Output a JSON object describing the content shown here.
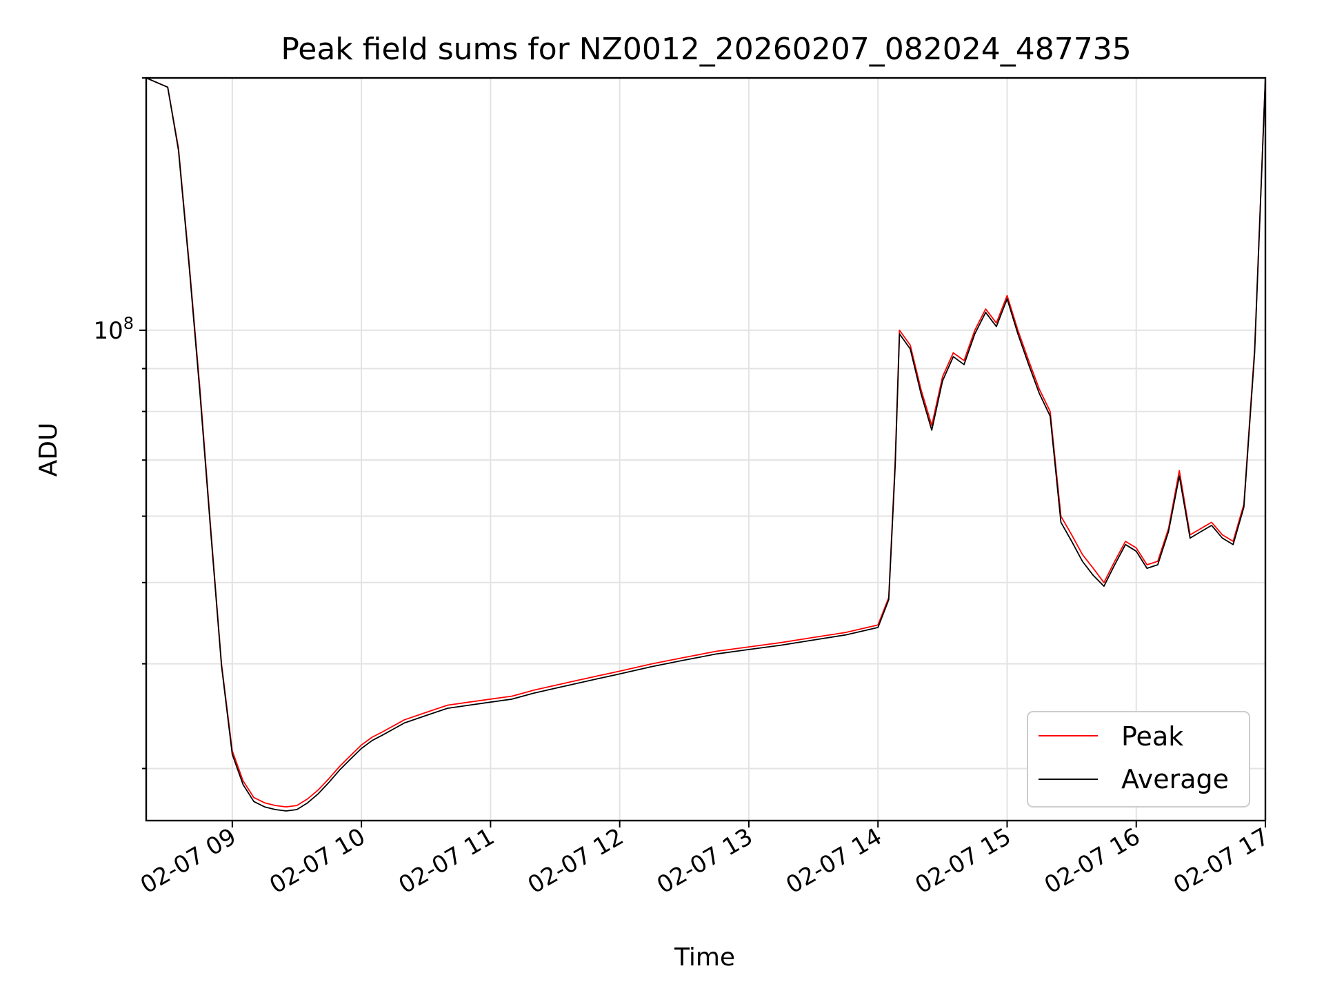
{
  "chart_data": {
    "type": "line",
    "title": "Peak field sums for NZ0012_20260207_082024_487735",
    "xlabel": "Time",
    "ylabel": "ADU",
    "yscale": "log",
    "ylim": [
      26000000,
      200000000
    ],
    "xlim": [
      "2026-02-07 08:20",
      "2026-02-07 17:00"
    ],
    "x_ticks": [
      "02-07 09",
      "02-07 10",
      "02-07 11",
      "02-07 12",
      "02-07 13",
      "02-07 14",
      "02-07 15",
      "02-07 16",
      "02-07 17"
    ],
    "y_ticks": [
      {
        "label": "10",
        "exponent": "8",
        "value": 100000000
      }
    ],
    "grid": true,
    "legend_position": "lower-right",
    "x": [
      "08:20",
      "08:30",
      "08:35",
      "08:40",
      "08:45",
      "08:50",
      "08:55",
      "09:00",
      "09:05",
      "09:10",
      "09:15",
      "09:20",
      "09:25",
      "09:30",
      "09:35",
      "09:40",
      "09:45",
      "09:50",
      "09:55",
      "10:00",
      "10:05",
      "10:10",
      "10:20",
      "10:30",
      "10:40",
      "10:50",
      "11:00",
      "11:10",
      "11:15",
      "11:20",
      "11:30",
      "11:40",
      "11:50",
      "12:00",
      "12:15",
      "12:30",
      "12:45",
      "13:00",
      "13:15",
      "13:30",
      "13:45",
      "14:00",
      "14:05",
      "14:08",
      "14:10",
      "14:15",
      "14:20",
      "14:25",
      "14:30",
      "14:35",
      "14:40",
      "14:45",
      "14:50",
      "14:55",
      "15:00",
      "15:05",
      "15:10",
      "15:15",
      "15:20",
      "15:25",
      "15:30",
      "15:35",
      "15:40",
      "15:45",
      "15:50",
      "15:55",
      "16:00",
      "16:05",
      "16:10",
      "16:15",
      "16:20",
      "16:25",
      "16:30",
      "16:35",
      "16:40",
      "16:45",
      "16:50",
      "16:55",
      "17:00"
    ],
    "series": [
      {
        "name": "Peak",
        "color": "#ff0000",
        "values": [
          200000000,
          195000000,
          165000000,
          120000000,
          85000000,
          58000000,
          40000000,
          31500000,
          29000000,
          27700000,
          27300000,
          27100000,
          27000000,
          27100000,
          27600000,
          28300000,
          29200000,
          30200000,
          31100000,
          32000000,
          32700000,
          33200000,
          34300000,
          35000000,
          35700000,
          36000000,
          36300000,
          36600000,
          36900000,
          37200000,
          37700000,
          38200000,
          38700000,
          39200000,
          40000000,
          40700000,
          41400000,
          41900000,
          42400000,
          43000000,
          43600000,
          44500000,
          48000000,
          70000000,
          100000000,
          96000000,
          85000000,
          77000000,
          88000000,
          94000000,
          92000000,
          100000000,
          106000000,
          102000000,
          110000000,
          100000000,
          92000000,
          85000000,
          80000000,
          60000000,
          57000000,
          54000000,
          52000000,
          50000000,
          53000000,
          56000000,
          55000000,
          52500000,
          53000000,
          58000000,
          68000000,
          57000000,
          58000000,
          59000000,
          57000000,
          56000000,
          62000000,
          95000000,
          200000000
        ]
      },
      {
        "name": "Average",
        "color": "#000000",
        "values": [
          200000000,
          195000000,
          164000000,
          119000000,
          84000000,
          57500000,
          39800000,
          31200000,
          28700000,
          27400000,
          27000000,
          26800000,
          26700000,
          26800000,
          27300000,
          28000000,
          28900000,
          29900000,
          30800000,
          31700000,
          32400000,
          32900000,
          34000000,
          34700000,
          35400000,
          35700000,
          36000000,
          36300000,
          36600000,
          36900000,
          37400000,
          37900000,
          38400000,
          38900000,
          39700000,
          40400000,
          41100000,
          41600000,
          42100000,
          42700000,
          43300000,
          44200000,
          47700000,
          69000000,
          99000000,
          95000000,
          84000000,
          76000000,
          87000000,
          93000000,
          91000000,
          99000000,
          105000000,
          101000000,
          109000000,
          99000000,
          91000000,
          84000000,
          79000000,
          59000000,
          56000000,
          53000000,
          51000000,
          49500000,
          52500000,
          55500000,
          54500000,
          52000000,
          52500000,
          57500000,
          67000000,
          56500000,
          57500000,
          58500000,
          56500000,
          55500000,
          61500000,
          94000000,
          200000000
        ]
      }
    ]
  },
  "legend": {
    "peak_label": "Peak",
    "average_label": "Average"
  }
}
